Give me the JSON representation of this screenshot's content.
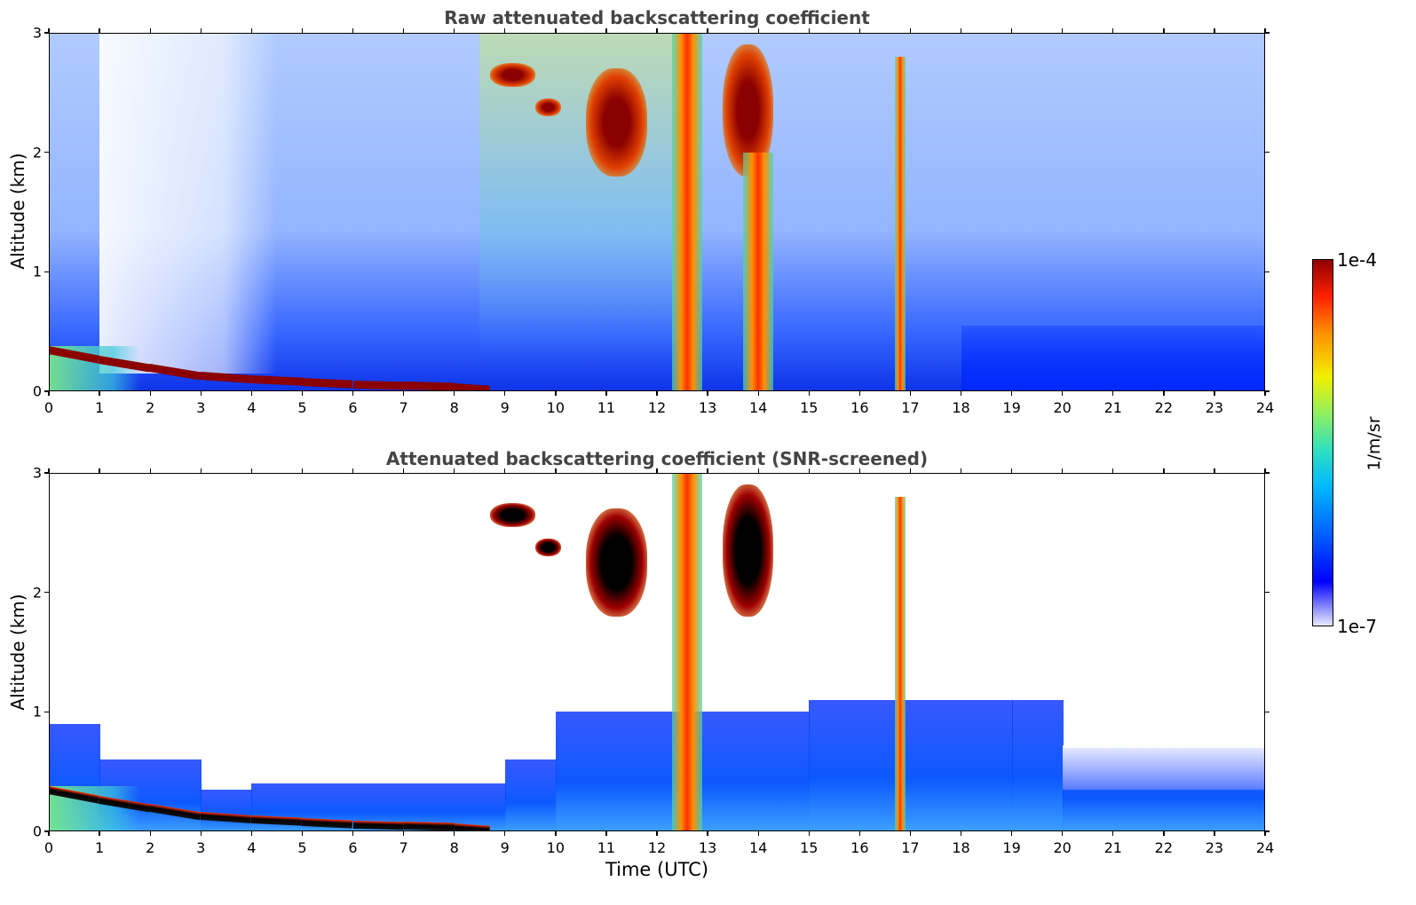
{
  "chart_data": [
    {
      "type": "heatmap",
      "title": "Raw attenuated backscattering coefficient",
      "xlabel": "",
      "ylabel": "Altitude (km)",
      "xlim": [
        0,
        24
      ],
      "ylim": [
        0,
        3
      ],
      "xticks": [
        "0",
        "1",
        "2",
        "3",
        "4",
        "5",
        "6",
        "7",
        "8",
        "9",
        "10",
        "11",
        "12",
        "13",
        "14",
        "15",
        "16",
        "17",
        "18",
        "19",
        "20",
        "21",
        "22",
        "23",
        "24"
      ],
      "yticks": [
        "0",
        "1",
        "2",
        "3"
      ],
      "colorbar": {
        "min": "1e-7",
        "max": "1e-4",
        "unit": "1/m/sr",
        "colormap": "jet"
      },
      "features": [
        {
          "kind": "boundary-layer-top",
          "x": [
            0,
            1,
            2,
            3,
            4,
            5,
            6,
            7,
            8,
            8.7
          ],
          "y": [
            0.38,
            0.3,
            0.23,
            0.16,
            0.13,
            0.11,
            0.09,
            0.08,
            0.07,
            0.05
          ]
        },
        {
          "kind": "cloud",
          "x": [
            8.7,
            9.6
          ],
          "y": [
            2.55,
            2.75
          ]
        },
        {
          "kind": "cloud",
          "x": [
            9.6,
            10.1
          ],
          "y": [
            2.3,
            2.45
          ]
        },
        {
          "kind": "cloud",
          "x": [
            10.6,
            11.8
          ],
          "y": [
            1.8,
            2.7
          ]
        },
        {
          "kind": "precipitation-column",
          "x": [
            12.3,
            12.9
          ],
          "y": [
            0,
            3
          ]
        },
        {
          "kind": "cloud",
          "x": [
            13.3,
            14.3
          ],
          "y": [
            1.8,
            2.9
          ]
        },
        {
          "kind": "precipitation-column",
          "x": [
            13.7,
            14.3
          ],
          "y": [
            0,
            2.0
          ]
        },
        {
          "kind": "precipitation-column",
          "x": [
            16.7,
            16.9
          ],
          "y": [
            0,
            2.8
          ]
        }
      ]
    },
    {
      "type": "heatmap",
      "title": "Attenuated backscattering coefficient (SNR-screened)",
      "xlabel": "Time (UTC)",
      "ylabel": "Altitude (km)",
      "xlim": [
        0,
        24
      ],
      "ylim": [
        0,
        3
      ],
      "xticks": [
        "0",
        "1",
        "2",
        "3",
        "4",
        "5",
        "6",
        "7",
        "8",
        "9",
        "10",
        "11",
        "12",
        "13",
        "14",
        "15",
        "16",
        "17",
        "18",
        "19",
        "20",
        "21",
        "22",
        "23",
        "24"
      ],
      "yticks": [
        "0",
        "1",
        "2",
        "3"
      ],
      "colorbar": {
        "min": "1e-7",
        "max": "1e-4",
        "unit": "1/m/sr",
        "colormap": "jet"
      },
      "features": [
        {
          "kind": "aerosol-layer-top",
          "x": [
            0,
            1,
            3,
            4,
            9,
            10,
            15,
            19,
            20,
            24
          ],
          "y": [
            0.9,
            0.6,
            0.2,
            0.35,
            0.4,
            0.6,
            1.0,
            1.1,
            0.7,
            0.7
          ]
        },
        {
          "kind": "boundary-layer-top",
          "x": [
            0,
            1,
            2,
            3,
            4,
            5,
            6,
            7,
            8,
            8.7
          ],
          "y": [
            0.38,
            0.3,
            0.23,
            0.16,
            0.13,
            0.11,
            0.09,
            0.08,
            0.07,
            0.05
          ]
        },
        {
          "kind": "cloud",
          "x": [
            8.7,
            9.6
          ],
          "y": [
            2.55,
            2.75
          ]
        },
        {
          "kind": "cloud",
          "x": [
            9.6,
            10.1
          ],
          "y": [
            2.3,
            2.45
          ]
        },
        {
          "kind": "cloud",
          "x": [
            10.6,
            11.8
          ],
          "y": [
            1.8,
            2.7
          ]
        },
        {
          "kind": "precipitation-column",
          "x": [
            12.3,
            12.9
          ],
          "y": [
            0,
            3
          ]
        },
        {
          "kind": "cloud",
          "x": [
            13.3,
            14.3
          ],
          "y": [
            1.8,
            2.9
          ]
        },
        {
          "kind": "precipitation-column",
          "x": [
            16.7,
            16.9
          ],
          "y": [
            0,
            2.8
          ]
        }
      ]
    }
  ]
}
